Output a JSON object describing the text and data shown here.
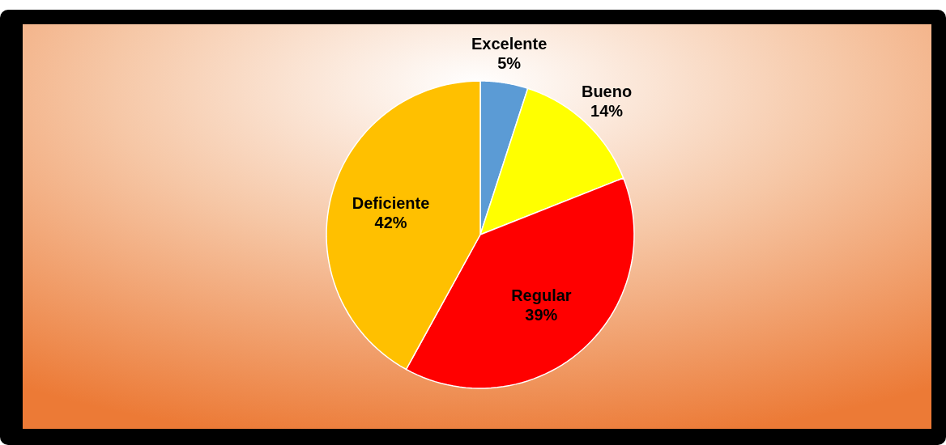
{
  "chart_data": {
    "type": "pie",
    "categories": [
      "Excelente",
      "Bueno",
      "Regular",
      "Deficiente"
    ],
    "values": [
      5,
      14,
      39,
      42
    ],
    "value_labels": [
      "5%",
      "14%",
      "39%",
      "42%"
    ],
    "colors": [
      "#5b9bd5",
      "#ffff00",
      "#ff0000",
      "#ffc000"
    ]
  }
}
